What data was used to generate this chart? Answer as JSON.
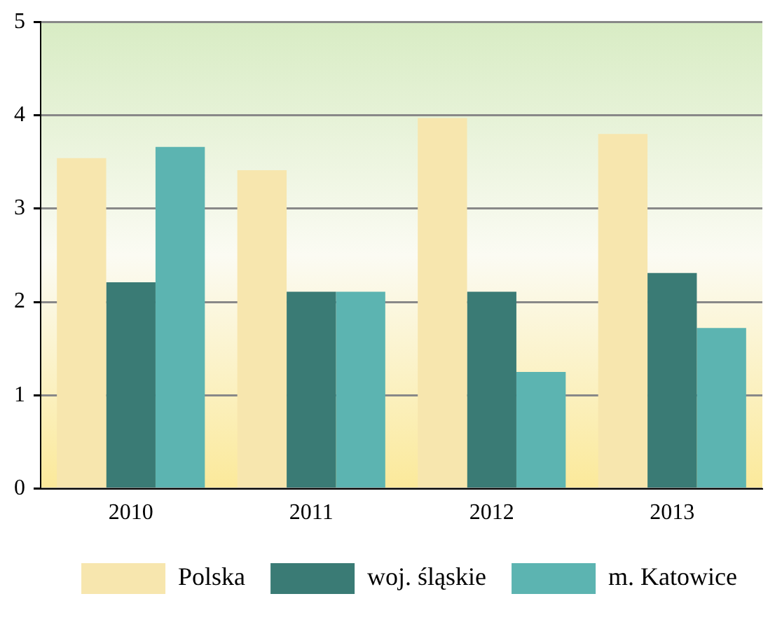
{
  "chart_data": {
    "type": "bar",
    "categories": [
      "2010",
      "2011",
      "2012",
      "2013"
    ],
    "series": [
      {
        "name": "Polska",
        "color": "#f7e6ae",
        "values": [
          3.54,
          3.41,
          3.97,
          3.8
        ]
      },
      {
        "name": "woj. śląskie",
        "color": "#3a7b75",
        "values": [
          2.21,
          2.11,
          2.11,
          2.31
        ]
      },
      {
        "name": "m. Katowice",
        "color": "#5cb4b1",
        "values": [
          3.66,
          2.11,
          1.25,
          1.72
        ]
      }
    ],
    "ylim": [
      0,
      5
    ],
    "yticks": [
      0,
      1,
      2,
      3,
      4,
      5
    ],
    "grid": "y",
    "legend": "bottom"
  }
}
